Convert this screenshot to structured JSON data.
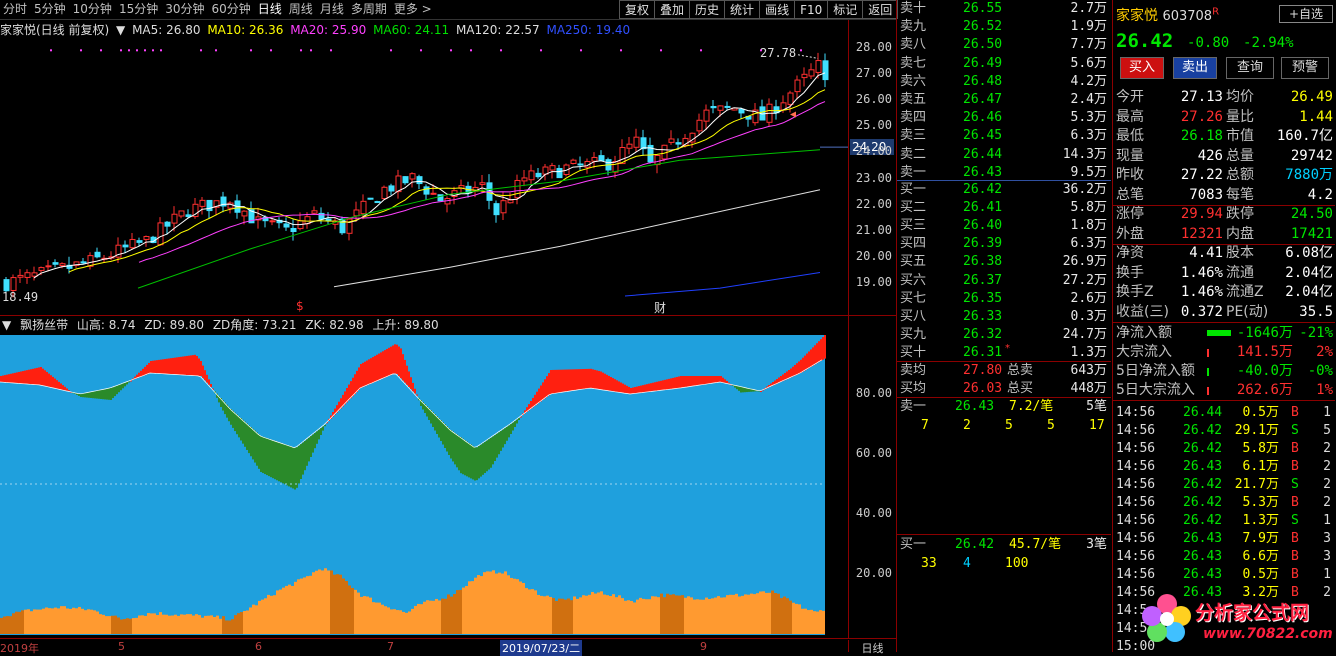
{
  "toolbar": {
    "items": [
      "分时",
      "5分钟",
      "10分钟",
      "15分钟",
      "30分钟",
      "60分钟",
      "日线",
      "周线",
      "月线",
      "多周期",
      "更多 >"
    ],
    "active": "日线",
    "buttons": [
      "复权",
      "叠加",
      "历史",
      "统计",
      "画线",
      "F10",
      "标记",
      "返回"
    ]
  },
  "main_legend": {
    "title": "家家悦(日线 前复权)",
    "ma5": "MA5: 26.80",
    "ma10": "MA10: 26.36",
    "ma20": "MA20: 25.90",
    "ma60": "MA60: 24.11",
    "ma120": "MA120: 22.57",
    "ma250": "MA250: 19.40"
  },
  "price_axis": [
    "28.00",
    "27.00",
    "26.00",
    "25.00",
    "24.00",
    "23.00",
    "22.00",
    "21.00",
    "20.00",
    "19.00"
  ],
  "current_price_label": "24.20",
  "high_label": "27.78",
  "low_label": "18.49",
  "event_labels": {
    "s": "$",
    "cai": "财"
  },
  "indicator_legend": {
    "name": "飘扬丝带",
    "shan": "山高: 8.74",
    "zd": "ZD: 89.80",
    "zdjd": "ZD角度: 73.21",
    "zk": "ZK: 82.98",
    "up": "上升: 89.80"
  },
  "indicator_axis": [
    "80.00",
    "60.00",
    "40.00",
    "20.00"
  ],
  "date_axis": [
    {
      "t": "2019年"
    },
    {
      "t": "5"
    },
    {
      "t": "6"
    },
    {
      "t": "7"
    },
    {
      "t": "2019/07/23/二"
    },
    {
      "t": "9"
    }
  ],
  "period_label": "日线",
  "orderbook": {
    "asks": [
      {
        "l": "卖十",
        "p": "26.55",
        "v": "2.7万"
      },
      {
        "l": "卖九",
        "p": "26.52",
        "v": "1.9万"
      },
      {
        "l": "卖八",
        "p": "26.50",
        "v": "7.7万"
      },
      {
        "l": "卖七",
        "p": "26.49",
        "v": "5.6万"
      },
      {
        "l": "卖六",
        "p": "26.48",
        "v": "4.2万"
      },
      {
        "l": "卖五",
        "p": "26.47",
        "v": "2.4万"
      },
      {
        "l": "卖四",
        "p": "26.46",
        "v": "5.3万"
      },
      {
        "l": "卖三",
        "p": "26.45",
        "v": "6.3万"
      },
      {
        "l": "卖二",
        "p": "26.44",
        "v": "14.3万"
      },
      {
        "l": "卖一",
        "p": "26.43",
        "v": "9.5万"
      }
    ],
    "bids": [
      {
        "l": "买一",
        "p": "26.42",
        "v": "36.2万"
      },
      {
        "l": "买二",
        "p": "26.41",
        "v": "5.8万"
      },
      {
        "l": "买三",
        "p": "26.40",
        "v": "1.8万"
      },
      {
        "l": "买四",
        "p": "26.39",
        "v": "6.3万"
      },
      {
        "l": "买五",
        "p": "26.38",
        "v": "26.9万"
      },
      {
        "l": "买六",
        "p": "26.37",
        "v": "27.2万"
      },
      {
        "l": "买七",
        "p": "26.35",
        "v": "2.6万"
      },
      {
        "l": "买八",
        "p": "26.33",
        "v": "0.3万"
      },
      {
        "l": "买九",
        "p": "26.32",
        "v": "24.7万"
      },
      {
        "l": "买十",
        "p": "26.31",
        "v": "1.3万"
      }
    ],
    "avg": [
      {
        "l": "卖均",
        "p": "27.80",
        "l2": "总卖",
        "v": "643万"
      },
      {
        "l": "买均",
        "p": "26.03",
        "l2": "总买",
        "v": "448万"
      }
    ],
    "ask1_queue": {
      "l": "卖一",
      "p": "26.43",
      "q": "7.2/笔",
      "n": "5笔",
      "nums": [
        "7",
        "2",
        "5",
        "5",
        "17"
      ]
    },
    "bid1_queue": {
      "l": "买一",
      "p": "26.42",
      "q": "45.7/笔",
      "n": "3笔",
      "nums": [
        "33",
        "4",
        "100"
      ]
    }
  },
  "stock": {
    "name": "家家悦",
    "code": "603708",
    "flag": "R",
    "price": "26.42",
    "change": "-0.80",
    "pct": "-2.94%",
    "zixuan": "自选",
    "buy": "买入",
    "sell": "卖出",
    "query": "查询",
    "alert": "预警"
  },
  "quote": [
    {
      "a": "今开",
      "b": "27.13",
      "c": "均价",
      "d": "26.49",
      "bc": "white",
      "dc": "yel"
    },
    {
      "a": "最高",
      "b": "27.26",
      "c": "量比",
      "d": "1.44",
      "bc": "red",
      "dc": "yel"
    },
    {
      "a": "最低",
      "b": "26.18",
      "c": "市值",
      "d": "160.7亿",
      "bc": "green",
      "dc": "white"
    },
    {
      "a": "现量",
      "b": "426",
      "c": "总量",
      "d": "29742",
      "bc": "white",
      "dc": "white"
    },
    {
      "a": "昨收",
      "b": "27.22",
      "c": "总额",
      "d": "7880万",
      "bc": "white",
      "dc": "cyan"
    },
    {
      "a": "总笔",
      "b": "7083",
      "c": "每笔",
      "d": "4.2",
      "bc": "white",
      "dc": "white"
    },
    {
      "a": "涨停",
      "b": "29.94",
      "c": "跌停",
      "d": "24.50",
      "bc": "red",
      "dc": "green"
    },
    {
      "a": "外盘",
      "b": "12321",
      "c": "内盘",
      "d": "17421",
      "bc": "red",
      "dc": "green"
    },
    {
      "a": "净资",
      "b": "4.41",
      "c": "股本",
      "d": "6.08亿",
      "bc": "white",
      "dc": "white"
    },
    {
      "a": "换手",
      "b": "1.46%",
      "c": "流通",
      "d": "2.04亿",
      "bc": "white",
      "dc": "white"
    },
    {
      "a": "换手Z",
      "b": "1.46%",
      "c": "流通Z",
      "d": "2.04亿",
      "bc": "white",
      "dc": "white"
    },
    {
      "a": "收益(三)",
      "b": "0.372",
      "c": "PE(动)",
      "d": "35.5",
      "bc": "white",
      "dc": "white"
    }
  ],
  "flows": [
    {
      "l": "净流入额",
      "v": "-1646万",
      "p": "-21%",
      "c": "green"
    },
    {
      "l": "大宗流入",
      "v": "141.5万",
      "p": "2%",
      "c": "red"
    },
    {
      "l": "5日净流入额",
      "v": "-40.0万",
      "p": "-0%",
      "c": "green"
    },
    {
      "l": "5日大宗流入",
      "v": "262.6万",
      "p": "1%",
      "c": "red"
    }
  ],
  "ticks": [
    {
      "t": "14:56",
      "p": "26.44",
      "v": "0.5万",
      "s": "B",
      "n": "1"
    },
    {
      "t": "14:56",
      "p": "26.42",
      "v": "29.1万",
      "s": "S",
      "n": "5"
    },
    {
      "t": "14:56",
      "p": "26.42",
      "v": "5.8万",
      "s": "B",
      "n": "2"
    },
    {
      "t": "14:56",
      "p": "26.43",
      "v": "6.1万",
      "s": "B",
      "n": "2"
    },
    {
      "t": "14:56",
      "p": "26.42",
      "v": "21.7万",
      "s": "S",
      "n": "2"
    },
    {
      "t": "14:56",
      "p": "26.42",
      "v": "5.3万",
      "s": "B",
      "n": "2"
    },
    {
      "t": "14:56",
      "p": "26.42",
      "v": "1.3万",
      "s": "S",
      "n": "1"
    },
    {
      "t": "14:56",
      "p": "26.43",
      "v": "7.9万",
      "s": "B",
      "n": "3"
    },
    {
      "t": "14:56",
      "p": "26.43",
      "v": "6.6万",
      "s": "B",
      "n": "3"
    },
    {
      "t": "14:56",
      "p": "26.43",
      "v": "0.5万",
      "s": "B",
      "n": "1"
    },
    {
      "t": "14:56",
      "p": "26.43",
      "v": "3.2万",
      "s": "B",
      "n": "2"
    },
    {
      "t": "14:5",
      "p": "",
      "v": "",
      "s": "",
      "n": ""
    },
    {
      "t": "14:5",
      "p": "",
      "v": "",
      "s": "",
      "n": ""
    },
    {
      "t": "15:00",
      "p": "",
      "v": "",
      "s": "",
      "n": ""
    }
  ],
  "watermark": {
    "text": "分析家公式网",
    "url": "www.70822.com"
  },
  "colors": {
    "ask_price": "#00e600",
    "bid_price": "#00e600",
    "down": "#00e600",
    "up": "#ff3030",
    "ma10": "#ffff00",
    "ma20": "#ff00ff",
    "ma60": "#00cc00",
    "ma120": "#ffffff",
    "ma250": "#2040ff",
    "ribbon_bg": "#1fa0dd",
    "ribbon_up": "#ff2010",
    "ribbon_down": "#2a8a2a",
    "volume_fill": "#ff9a30"
  }
}
